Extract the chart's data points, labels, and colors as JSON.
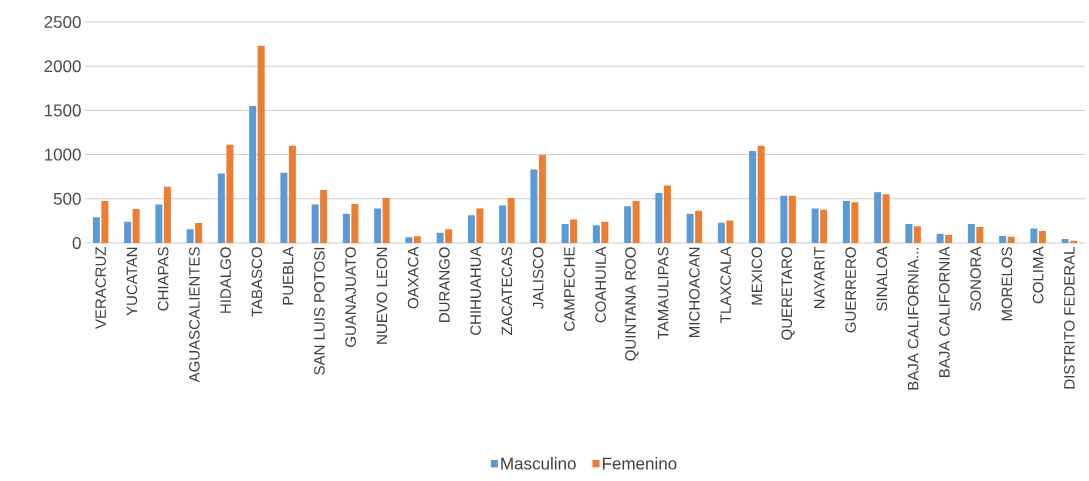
{
  "chart_data": {
    "type": "bar",
    "categories": [
      "VERACRUZ",
      "YUCATAN",
      "CHIAPAS",
      "AGUASCALIENTES",
      "HIDALGO",
      "TABASCO",
      "PUEBLA",
      "SAN  LUIS POTOSI",
      "GUANAJUATO",
      "NUEVO LEON",
      "OAXACA",
      "DURANGO",
      "CHIHUAHUA",
      "ZACATECAS",
      "JALISCO",
      "CAMPECHE",
      "COAHUILA",
      "QUINTANA ROO",
      "TAMAULIPAS",
      "MICHOACAN",
      "TLAXCALA",
      "MEXICO",
      "QUERETARO",
      "NAYARIT",
      "GUERRERO",
      "SINALOA",
      "BAJA CALIFORNIA...",
      "BAJA CALIFORNIA",
      "SONORA",
      "MORELOS",
      "COLIMA",
      "DISTRITO FEDERAL"
    ],
    "series": [
      {
        "name": "Masculino",
        "color": "#5b9bd5",
        "values": [
          290,
          240,
          435,
          155,
          785,
          1550,
          795,
          435,
          330,
          390,
          65,
          115,
          315,
          425,
          830,
          215,
          200,
          415,
          565,
          330,
          230,
          1040,
          535,
          390,
          475,
          575,
          215,
          105,
          215,
          80,
          165,
          45
        ]
      },
      {
        "name": "Femenino",
        "color": "#ed7d31",
        "values": [
          475,
          385,
          635,
          225,
          1110,
          2230,
          1100,
          600,
          440,
          510,
          75,
          155,
          390,
          510,
          995,
          265,
          240,
          475,
          650,
          365,
          255,
          1100,
          535,
          375,
          460,
          550,
          190,
          90,
          180,
          70,
          135,
          25
        ]
      }
    ],
    "ylim": [
      0,
      2500
    ],
    "yticks": [
      0,
      500,
      1000,
      1500,
      2000,
      2500
    ],
    "grid": "y",
    "legend": "bottom"
  }
}
